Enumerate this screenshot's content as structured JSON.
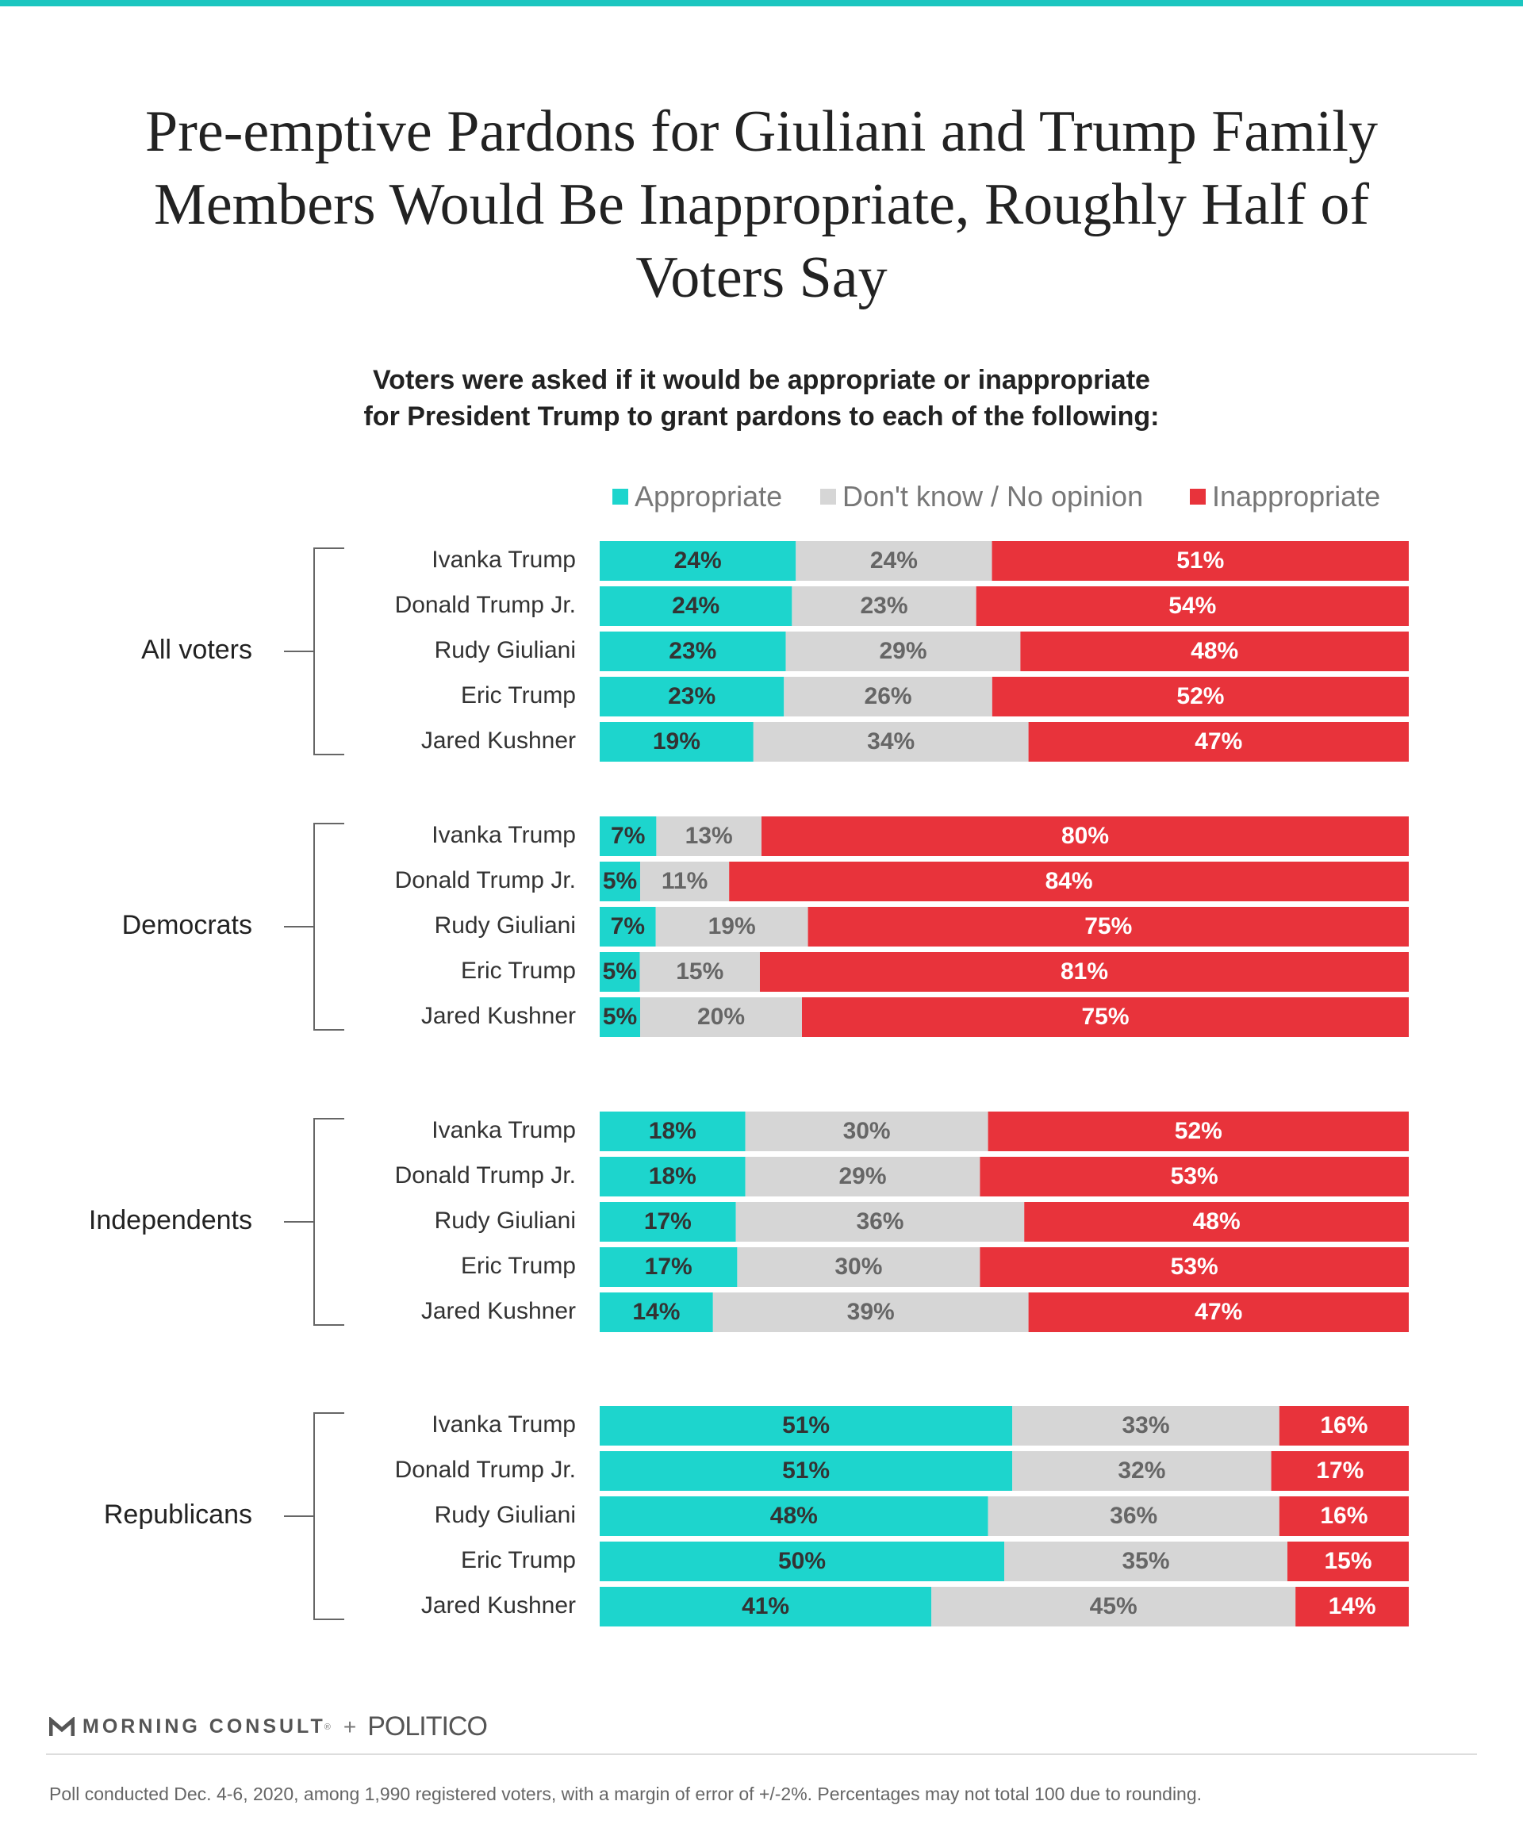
{
  "title": "Pre-emptive Pardons for Giuliani and Trump Family Members Would Be Inappropriate, Roughly Half of Voters Say",
  "subtitle_line1": "Voters were asked if it would be appropriate or inappropriate",
  "subtitle_line2": "for President Trump to grant pardons to each of the following:",
  "colors": {
    "appropriate": "#1dd5cd",
    "dont_know": "#d6d6d6",
    "inappropriate": "#e8333b",
    "label_dark": "#333333",
    "label_gray": "#666666",
    "label_white": "#ffffff"
  },
  "logo": {
    "brand": "MORNING CONSULT",
    "mark": "®",
    "plus": "+",
    "partner": "POLITICO"
  },
  "footnote": "Poll conducted Dec. 4-6, 2020, among 1,990 registered voters, with a margin of error of +/-2%. Percentages may not total 100 due to rounding.",
  "chart_data": {
    "type": "bar",
    "orientation": "horizontal",
    "stacked": true,
    "title": "Pre-emptive Pardons for Giuliani and Trump Family Members Would Be Inappropriate, Roughly Half of Voters Say",
    "legend": {
      "position": "top-right",
      "entries": [
        "Appropriate",
        "Don't know / No opinion",
        "Inappropriate"
      ]
    },
    "xlim": [
      0,
      100
    ],
    "grid": false,
    "groups": [
      {
        "name": "All voters",
        "categories": [
          "Ivanka Trump",
          "Donald Trump Jr.",
          "Rudy Giuliani",
          "Eric Trump",
          "Jared Kushner"
        ],
        "series": [
          {
            "name": "Appropriate",
            "values": [
              24,
              24,
              23,
              23,
              19
            ]
          },
          {
            "name": "Don't know / No opinion",
            "values": [
              24,
              23,
              29,
              26,
              34
            ]
          },
          {
            "name": "Inappropriate",
            "values": [
              51,
              54,
              48,
              52,
              47
            ]
          }
        ]
      },
      {
        "name": "Democrats",
        "categories": [
          "Ivanka Trump",
          "Donald Trump Jr.",
          "Rudy Giuliani",
          "Eric Trump",
          "Jared Kushner"
        ],
        "series": [
          {
            "name": "Appropriate",
            "values": [
              7,
              5,
              7,
              5,
              5
            ]
          },
          {
            "name": "Don't know / No opinion",
            "values": [
              13,
              11,
              19,
              15,
              20
            ]
          },
          {
            "name": "Inappropriate",
            "values": [
              80,
              84,
              75,
              81,
              75
            ]
          }
        ]
      },
      {
        "name": "Independents",
        "categories": [
          "Ivanka Trump",
          "Donald Trump Jr.",
          "Rudy Giuliani",
          "Eric Trump",
          "Jared Kushner"
        ],
        "series": [
          {
            "name": "Appropriate",
            "values": [
              18,
              18,
              17,
              17,
              14
            ]
          },
          {
            "name": "Don't know / No opinion",
            "values": [
              30,
              29,
              36,
              30,
              39
            ]
          },
          {
            "name": "Inappropriate",
            "values": [
              52,
              53,
              48,
              53,
              47
            ]
          }
        ]
      },
      {
        "name": "Republicans",
        "categories": [
          "Ivanka Trump",
          "Donald Trump Jr.",
          "Rudy Giuliani",
          "Eric Trump",
          "Jared Kushner"
        ],
        "series": [
          {
            "name": "Appropriate",
            "values": [
              51,
              51,
              48,
              50,
              41
            ]
          },
          {
            "name": "Don't know / No opinion",
            "values": [
              33,
              32,
              36,
              35,
              45
            ]
          },
          {
            "name": "Inappropriate",
            "values": [
              16,
              17,
              16,
              15,
              14
            ]
          }
        ]
      }
    ]
  }
}
